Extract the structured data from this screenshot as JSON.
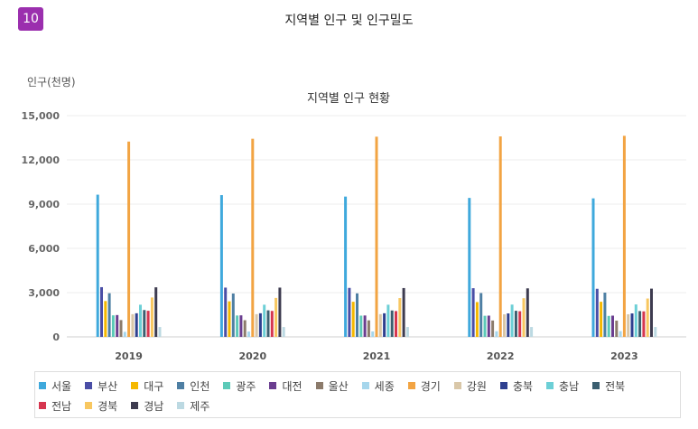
{
  "header": {
    "badge": "10",
    "title": "지역별 인구 및 인구밀도"
  },
  "chart_data": {
    "type": "bar",
    "title": "지역별 인구 현황",
    "ylabel": "인구(천명)",
    "xlabel": "",
    "ylim": [
      0,
      15000
    ],
    "yticks": [
      0,
      3000,
      6000,
      9000,
      12000,
      15000
    ],
    "ytick_labels": [
      "0",
      "3,000",
      "6,000",
      "9,000",
      "12,000",
      "15,000"
    ],
    "grid": true,
    "legend_position": "bottom",
    "categories": [
      "2019",
      "2020",
      "2021",
      "2022",
      "2023"
    ],
    "series": [
      {
        "name": "서울",
        "color": "#3fa9dc",
        "values": [
          9640,
          9610,
          9510,
          9420,
          9390
        ]
      },
      {
        "name": "부산",
        "color": "#4a4ea6",
        "values": [
          3370,
          3340,
          3320,
          3300,
          3260
        ]
      },
      {
        "name": "대구",
        "color": "#f5b800",
        "values": [
          2430,
          2410,
          2380,
          2360,
          2380
        ]
      },
      {
        "name": "인천",
        "color": "#4e7fa3",
        "values": [
          2960,
          2940,
          2950,
          2970,
          3000
        ]
      },
      {
        "name": "광주",
        "color": "#5ccab8",
        "values": [
          1460,
          1450,
          1440,
          1430,
          1420
        ]
      },
      {
        "name": "대전",
        "color": "#6a3d8f",
        "values": [
          1480,
          1460,
          1450,
          1440,
          1440
        ]
      },
      {
        "name": "울산",
        "color": "#8c7b6b",
        "values": [
          1140,
          1130,
          1120,
          1110,
          1100
        ]
      },
      {
        "name": "세종",
        "color": "#a6d6ec",
        "values": [
          340,
          360,
          370,
          380,
          390
        ]
      },
      {
        "name": "경기",
        "color": "#f2a443",
        "values": [
          13240,
          13430,
          13570,
          13590,
          13630
        ]
      },
      {
        "name": "강원",
        "color": "#d9c7a8",
        "values": [
          1540,
          1540,
          1540,
          1530,
          1530
        ]
      },
      {
        "name": "충북",
        "color": "#2e3f8f",
        "values": [
          1600,
          1600,
          1600,
          1590,
          1590
        ]
      },
      {
        "name": "충남",
        "color": "#6ccfd6",
        "values": [
          2180,
          2180,
          2180,
          2190,
          2200
        ]
      },
      {
        "name": "전북",
        "color": "#3b5f70",
        "values": [
          1820,
          1800,
          1790,
          1770,
          1750
        ]
      },
      {
        "name": "전남",
        "color": "#d6364f",
        "values": [
          1770,
          1760,
          1750,
          1740,
          1730
        ]
      },
      {
        "name": "경북",
        "color": "#f8c760",
        "values": [
          2670,
          2640,
          2630,
          2620,
          2600
        ]
      },
      {
        "name": "경남",
        "color": "#3d3b4f",
        "values": [
          3360,
          3340,
          3310,
          3290,
          3270
        ]
      },
      {
        "name": "제주",
        "color": "#bcd9e2",
        "values": [
          670,
          670,
          670,
          670,
          670
        ]
      }
    ]
  }
}
